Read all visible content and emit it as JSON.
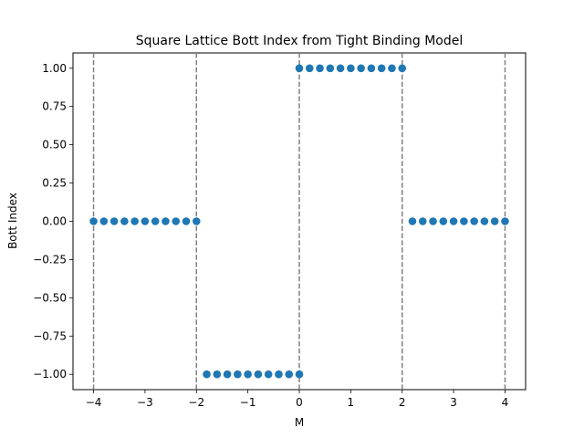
{
  "chart_data": {
    "type": "scatter",
    "title": "Square Lattice Bott Index from Tight Binding Model",
    "xlabel": "M",
    "ylabel": "Bott Index",
    "xlim": [
      -4.4,
      4.4
    ],
    "ylim": [
      -1.1,
      1.1
    ],
    "xticks": [
      -4,
      -3,
      -2,
      -1,
      0,
      1,
      2,
      3,
      4
    ],
    "xtick_labels": [
      "−4",
      "−3",
      "−2",
      "−1",
      "0",
      "1",
      "2",
      "3",
      "4"
    ],
    "yticks": [
      -1.0,
      -0.75,
      -0.5,
      -0.25,
      0.0,
      0.25,
      0.5,
      0.75,
      1.0
    ],
    "ytick_labels": [
      "−1.00",
      "−0.75",
      "−0.50",
      "−0.25",
      "0.00",
      "0.25",
      "0.50",
      "0.75",
      "1.00"
    ],
    "vlines": [
      -4,
      -2,
      0,
      2,
      4
    ],
    "grid": false,
    "colors": {
      "points": "#1f77b4",
      "vlines": "#808080"
    },
    "series": [
      {
        "x": [
          -4.0,
          -3.8,
          -3.6,
          -3.4,
          -3.2,
          -3.0,
          -2.8,
          -2.6,
          -2.4,
          -2.2,
          -2.0,
          -1.8,
          -1.6,
          -1.4,
          -1.2,
          -1.0,
          -0.8,
          -0.6,
          -0.4,
          -0.2,
          -0.0,
          0.0,
          0.2,
          0.4,
          0.6,
          0.8,
          1.0,
          1.2,
          1.4,
          1.6,
          1.8,
          2.0,
          2.2,
          2.4,
          2.6,
          2.8,
          3.0,
          3.2,
          3.4,
          3.6,
          3.8,
          4.0
        ],
        "y": [
          0,
          0,
          0,
          0,
          0,
          0,
          0,
          0,
          0,
          0,
          0,
          -1,
          -1,
          -1,
          -1,
          -1,
          -1,
          -1,
          -1,
          -1,
          -1,
          1,
          1,
          1,
          1,
          1,
          1,
          1,
          1,
          1,
          1,
          1,
          0,
          0,
          0,
          0,
          0,
          0,
          0,
          0,
          0,
          0
        ]
      }
    ]
  }
}
